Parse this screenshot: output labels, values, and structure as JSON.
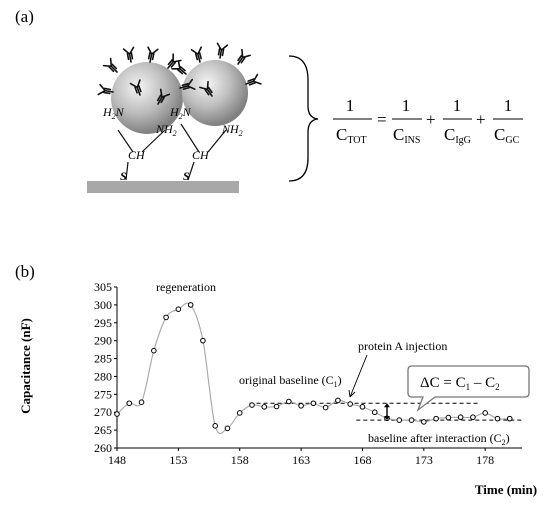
{
  "panel_a": {
    "label": "(a)",
    "chem": {
      "h2n_left": "H",
      "h2n_left_sub": "2",
      "h2n_left_n": "N",
      "nh2_left": "NH",
      "nh2_left_sub": "2",
      "h2n_right": "H",
      "h2n_right_sub": "2",
      "h2n_right_n": "N",
      "nh2_right": "NH",
      "nh2_right_sub": "2",
      "ch_left": "CH",
      "ch_right": "CH",
      "s_left": "S",
      "s_right": "S"
    },
    "equation": {
      "numerator": "1",
      "lhs_sub": "TOT",
      "c": "C",
      "equals": "=",
      "plus": "+",
      "terms": [
        "INS",
        "IgG",
        "GC"
      ]
    }
  },
  "panel_b": {
    "label": "(b)",
    "annotations": {
      "regeneration": "regeneration",
      "protein_a": "protein A injection",
      "original_baseline": "original baseline (C",
      "original_baseline_sub": "1",
      "original_baseline_end": ")",
      "after_interaction": "baseline after interaction (C",
      "after_interaction_sub": "2",
      "after_interaction_end": ")",
      "delta_c": "ΔC  = C",
      "delta_c_sub1": "1",
      "delta_c_mid": " – C",
      "delta_c_sub2": "2"
    },
    "colors": {
      "line": "#a6a6a6",
      "marker": "#000000",
      "gold": "#b3b3b3"
    }
  },
  "chart_data": {
    "type": "line",
    "title": "",
    "xlabel": "Time (min)",
    "ylabel": "Capacitance (nF)",
    "xlim": [
      148,
      181
    ],
    "ylim": [
      260,
      305
    ],
    "xticks": [
      148,
      153,
      158,
      163,
      168,
      173,
      178
    ],
    "yticks": [
      260,
      265,
      270,
      275,
      280,
      285,
      290,
      295,
      300,
      305
    ],
    "series": [
      {
        "x": [
          148,
          149,
          150,
          151,
          152,
          153,
          154,
          155,
          156,
          157,
          158,
          159,
          160,
          161,
          162,
          163,
          164,
          165,
          166,
          167,
          168,
          169,
          170,
          171,
          172,
          173,
          174,
          175,
          176,
          177,
          178,
          179,
          180
        ],
        "y": [
          269.5,
          272.5,
          272.8,
          287.2,
          296.5,
          298.8,
          300,
          290,
          266.2,
          265.5,
          269.8,
          272,
          271.5,
          271.6,
          273,
          271.8,
          272.5,
          271.3,
          273.3,
          272.3,
          271.5,
          270,
          268.3,
          267.8,
          267.8,
          267.3,
          268.2,
          268.5,
          268.6,
          268.6,
          269.8,
          268.2,
          268.2
        ]
      }
    ],
    "reference_lines": [
      {
        "y": 272.5,
        "x_from": 158.8,
        "x_to": 177.5
      },
      {
        "y": 267.8,
        "x_from": 167.5,
        "x_to": 181
      }
    ]
  }
}
